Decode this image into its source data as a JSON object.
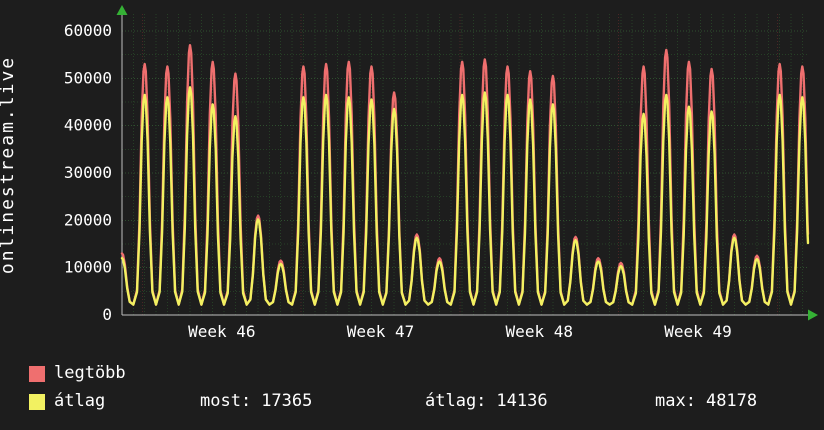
{
  "chart_data": {
    "type": "line",
    "title": "onlinestream.live",
    "x_axis": {
      "tick_labels": [
        "Week 46",
        "Week 47",
        "Week 48",
        "Week 49"
      ],
      "label_positions_days": [
        4.4,
        11.4,
        18.4,
        25.4
      ],
      "week_boundaries_days": [
        0.9,
        7.9,
        14.9,
        21.9,
        28.9
      ],
      "x_max_days": 30.25
    },
    "y_axis": {
      "ticks": [
        0,
        10000,
        20000,
        30000,
        40000,
        50000,
        60000
      ],
      "max_value": 64000
    },
    "grid": true,
    "legend_position": "bottom-left",
    "trough": 2200,
    "series": [
      {
        "name": "legtöbb",
        "color": "#ef6f6f",
        "daily_peaks": [
          13000,
          53000,
          52500,
          57000,
          53500,
          51000,
          21000,
          11500,
          52500,
          53000,
          53500,
          52500,
          47000,
          17000,
          12000,
          53500,
          54000,
          52500,
          51500,
          50500,
          16500,
          12000,
          11000,
          52500,
          56000,
          53500,
          52000,
          17000,
          12500,
          53000,
          52500
        ]
      },
      {
        "name": "átlag",
        "color": "#f2f161",
        "daily_peaks": [
          12000,
          46500,
          46000,
          48100,
          44500,
          42000,
          20200,
          10800,
          46000,
          46500,
          46000,
          45500,
          43500,
          16300,
          11300,
          46500,
          47000,
          46500,
          45500,
          44500,
          15800,
          11300,
          10300,
          42500,
          46500,
          44000,
          43000,
          16300,
          11800,
          46500,
          46000
        ]
      }
    ],
    "legend": [
      {
        "label": "legtöbb",
        "color": "#ef6f6f"
      },
      {
        "label": "átlag",
        "color": "#f2f161"
      }
    ],
    "stats": [
      {
        "label": "most:",
        "value": "17365"
      },
      {
        "label": "átlag:",
        "value": "14136"
      },
      {
        "label": "max:",
        "value": "48178"
      }
    ],
    "colors": {
      "background": "#1d1d1d",
      "text": "#ffffff",
      "grid": "#263f26",
      "grid_major": "#2f4f2f",
      "grid_week": "#4a2626",
      "axis": "#c0c0c0",
      "arrow": "#35b135"
    }
  }
}
